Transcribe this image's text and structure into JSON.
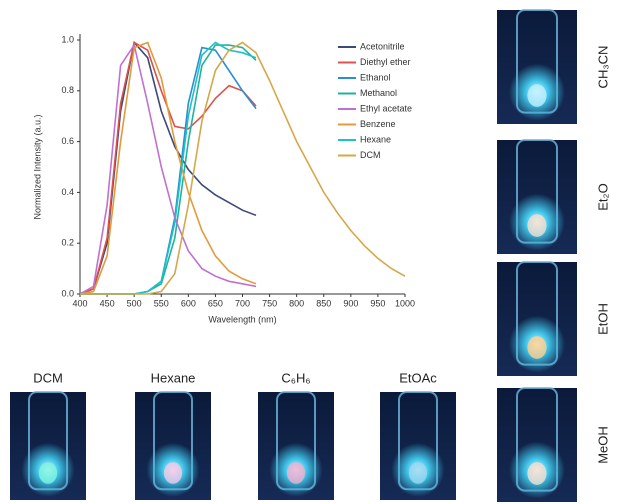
{
  "chart_data": {
    "type": "line",
    "xlabel": "Wavelength (nm)",
    "ylabel": "Normalized Intensity (a.u.)",
    "x": [
      400,
      425,
      450,
      475,
      500,
      525,
      550,
      575,
      600,
      625,
      650,
      675,
      700,
      725,
      750,
      775,
      800,
      825,
      850,
      875,
      900,
      925,
      950,
      975,
      1000
    ],
    "xlim": [
      400,
      1000
    ],
    "xticks": [
      400,
      450,
      500,
      550,
      600,
      650,
      700,
      750,
      800,
      850,
      900,
      950,
      1000
    ],
    "ylim": [
      0,
      1
    ],
    "yticks": [
      {
        "value": 0,
        "label": "0.0"
      },
      0.2,
      0.4,
      0.6,
      0.8,
      {
        "value": 1,
        "label": "1.0"
      }
    ],
    "legend": "upper right",
    "series": [
      {
        "name": "Acetonitrile",
        "color": "#3b4a78",
        "values": [
          0,
          0.02,
          0.2,
          0.72,
          0.99,
          0.93,
          0.72,
          0.58,
          0.49,
          0.43,
          0.39,
          0.36,
          0.33,
          0.31,
          null,
          null,
          null,
          null,
          null,
          null,
          null,
          null,
          null,
          null,
          null
        ]
      },
      {
        "name": "Diethyl ether",
        "color": "#d9534f",
        "values": [
          0,
          0.02,
          0.22,
          0.75,
          0.99,
          0.96,
          0.8,
          0.66,
          0.65,
          0.7,
          0.77,
          0.82,
          0.8,
          0.74,
          null,
          null,
          null,
          null,
          null,
          null,
          null,
          null,
          null,
          null,
          null
        ]
      },
      {
        "name": "Ethanol",
        "color": "#2a8fd0",
        "values": [
          0,
          0,
          0,
          0,
          0,
          0.01,
          0.05,
          0.3,
          0.75,
          0.97,
          0.96,
          0.88,
          0.8,
          0.73,
          null,
          null,
          null,
          null,
          null,
          null,
          null,
          null,
          null,
          null,
          null
        ]
      },
      {
        "name": "Methanol",
        "color": "#20b39a",
        "values": [
          0,
          0,
          0,
          0,
          0,
          0.01,
          0.04,
          0.22,
          0.6,
          0.9,
          0.98,
          0.98,
          0.97,
          0.92,
          null,
          null,
          null,
          null,
          null,
          null,
          null,
          null,
          null,
          null,
          null
        ]
      },
      {
        "name": "Ethyl acetate",
        "color": "#c070d0",
        "values": [
          0,
          0.03,
          0.35,
          0.9,
          0.98,
          0.75,
          0.5,
          0.3,
          0.17,
          0.1,
          0.07,
          0.05,
          0.04,
          0.03,
          null,
          null,
          null,
          null,
          null,
          null,
          null,
          null,
          null,
          null,
          null
        ]
      },
      {
        "name": "Benzene",
        "color": "#e39a3c",
        "values": [
          0,
          0.01,
          0.15,
          0.6,
          0.97,
          0.99,
          0.85,
          0.6,
          0.4,
          0.25,
          0.15,
          0.09,
          0.06,
          0.04,
          null,
          null,
          null,
          null,
          null,
          null,
          null,
          null,
          null,
          null,
          null
        ]
      },
      {
        "name": "Hexane",
        "color": "#20c0c8",
        "values": [
          0,
          0,
          0,
          0,
          0,
          0.01,
          0.05,
          0.28,
          0.7,
          0.94,
          0.99,
          0.96,
          0.95,
          0.93,
          null,
          null,
          null,
          null,
          null,
          null,
          null,
          null,
          null,
          null,
          null
        ]
      },
      {
        "name": "DCM",
        "color": "#d4a84a",
        "values": [
          0,
          0,
          0,
          0,
          0,
          0,
          0.01,
          0.08,
          0.35,
          0.68,
          0.88,
          0.96,
          0.99,
          0.95,
          0.84,
          0.72,
          0.6,
          0.5,
          0.4,
          0.32,
          0.25,
          0.19,
          0.14,
          0.1,
          0.07
        ]
      }
    ]
  },
  "photos": {
    "bottom": [
      "DCM",
      "Hexane",
      "C₆H₆",
      "EtOAc"
    ],
    "right": [
      "CH₃CN",
      "Et₂O",
      "EtOH",
      "MeOH"
    ]
  }
}
